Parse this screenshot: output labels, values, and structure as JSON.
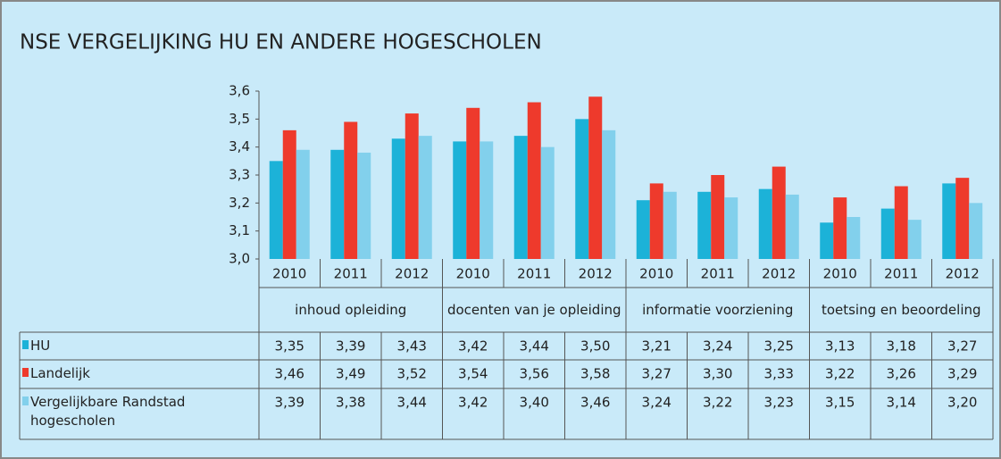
{
  "chart_data": {
    "type": "bar",
    "title": "NSE VERGELIJKING  HU EN ANDERE HOGESCHOLEN",
    "categories": [
      "2010",
      "2011",
      "2012",
      "2010",
      "2011",
      "2012",
      "2010",
      "2011",
      "2012",
      "2010",
      "2011",
      "2012"
    ],
    "groups": [
      "inhoud opleiding",
      "docenten van je opleiding",
      "informatie voorziening",
      "toetsing en beoordeling"
    ],
    "series": [
      {
        "name": "HU",
        "color": "#1cb2d8",
        "values": [
          3.35,
          3.39,
          3.43,
          3.42,
          3.44,
          3.5,
          3.21,
          3.24,
          3.25,
          3.13,
          3.18,
          3.27
        ],
        "value_labels": [
          "3,35",
          "3,39",
          "3,43",
          "3,42",
          "3,44",
          "3,50",
          "3,21",
          "3,24",
          "3,25",
          "3,13",
          "3,18",
          "3,27"
        ]
      },
      {
        "name": "Landelijk",
        "color": "#ee3a2c",
        "values": [
          3.46,
          3.49,
          3.52,
          3.54,
          3.56,
          3.58,
          3.27,
          3.3,
          3.33,
          3.22,
          3.26,
          3.29
        ],
        "value_labels": [
          "3,46",
          "3,49",
          "3,52",
          "3,54",
          "3,56",
          "3,58",
          "3,27",
          "3,30",
          "3,33",
          "3,22",
          "3,26",
          "3,29"
        ]
      },
      {
        "name": "Vergelijkbare Randstad hogescholen",
        "color": "#82d0ec",
        "values": [
          3.39,
          3.38,
          3.44,
          3.42,
          3.4,
          3.46,
          3.24,
          3.22,
          3.23,
          3.15,
          3.14,
          3.2
        ],
        "value_labels": [
          "3,39",
          "3,38",
          "3,44",
          "3,42",
          "3,40",
          "3,46",
          "3,24",
          "3,22",
          "3,23",
          "3,15",
          "3,14",
          "3,20"
        ]
      }
    ],
    "ylim": [
      3.0,
      3.6
    ],
    "yticks": [
      {
        "value": 3.0,
        "label": "3,0"
      },
      {
        "value": 3.1,
        "label": "3,1"
      },
      {
        "value": 3.2,
        "label": "3,2"
      },
      {
        "value": 3.3,
        "label": "3,3"
      },
      {
        "value": 3.4,
        "label": "3,4"
      },
      {
        "value": 3.5,
        "label": "3,5"
      },
      {
        "value": 3.6,
        "label": "3,6"
      }
    ],
    "grid": false
  }
}
